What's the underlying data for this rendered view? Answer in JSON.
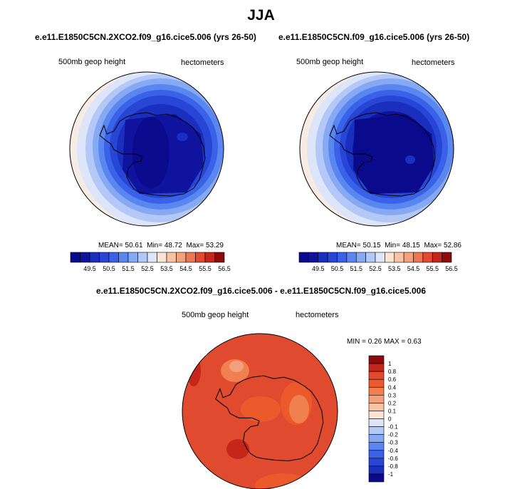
{
  "figure": {
    "title": "JJA"
  },
  "panels": [
    {
      "case": "e.e11.E1850C5CN.2XCO2.f09_g16.cice5.006 (yrs 26-50)",
      "variable": "500mb geop height",
      "units": "hectometers",
      "stats": {
        "mean_label": "MEAN=",
        "mean": "50.61",
        "min_label": "Min=",
        "min": "48.72",
        "max_label": "Max=",
        "max": "53.29"
      }
    },
    {
      "case": "e.e11.E1850C5CN.f09_g16.cice5.006 (yrs 26-50)",
      "variable": "500mb geop height",
      "units": "hectometers",
      "stats": {
        "mean_label": "MEAN=",
        "mean": "50.15",
        "min_label": "Min=",
        "min": "48.15",
        "max_label": "Max=",
        "max": "52.86"
      }
    }
  ],
  "difference": {
    "title": "e.e11.E1850C5CN.2XCO2.f09_g16.cice5.006 - e.e11.E1850C5CN.f09_g16.cice5.006",
    "variable": "500mb geop height",
    "units": "hectometers",
    "stats": {
      "min_label": "MIN =",
      "min": "0.26",
      "max_label": "MAX =",
      "max": "0.63"
    }
  },
  "colorbar_top": {
    "labels": [
      "49.5",
      "50.5",
      "51.5",
      "52.5",
      "53.5",
      "54.5",
      "55.5",
      "56.5"
    ],
    "colors": [
      "#0a0a8c",
      "#10139e",
      "#1a2fbe",
      "#2746d6",
      "#3a62e8",
      "#5a86f0",
      "#86a9f4",
      "#b3c8f6",
      "#dde6f8",
      "#fbe4d4",
      "#f7c3a3",
      "#f3a07b",
      "#ec7552",
      "#e04a2e",
      "#c4261a",
      "#8c0a0a"
    ]
  },
  "colorbar_diff": {
    "labels": [
      "1",
      "0.8",
      "0.6",
      "0.4",
      "0.3",
      "0.2",
      "0.1",
      "0",
      "-0.1",
      "-0.2",
      "-0.3",
      "-0.4",
      "-0.6",
      "-0.8",
      "-1"
    ],
    "colors": [
      "#8c0a0a",
      "#c4261a",
      "#e04a2e",
      "#ec5a2c",
      "#f0804f",
      "#f4a07d",
      "#f7c3a3",
      "#fbe4d4",
      "#dde6f8",
      "#b3c8f6",
      "#86a9f4",
      "#5a86f0",
      "#3a62e8",
      "#2746d6",
      "#1a2fbe",
      "#0a0a8c"
    ]
  }
}
